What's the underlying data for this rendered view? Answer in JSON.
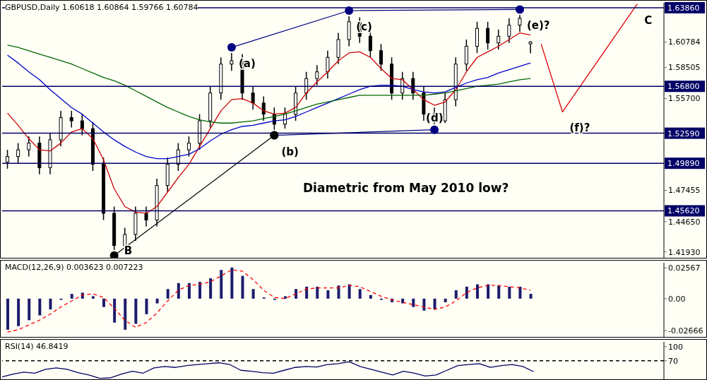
{
  "chart_data": [
    {
      "type": "candlestick",
      "title": "GBPUSD,Daily  1.60618 1.60864 1.59766 1.60784",
      "annotations": [
        "Diametric from May 2010 low?"
      ],
      "color": "#000000",
      "tick_labels": "y",
      "categories": [
        null,
        null,
        null,
        null,
        null,
        null,
        null,
        null,
        null,
        null,
        null,
        null,
        null,
        null,
        null,
        null,
        null,
        null,
        null,
        null,
        null,
        null,
        null,
        null,
        null,
        null,
        null,
        null,
        null,
        null,
        null,
        null,
        null,
        null,
        null,
        null,
        null,
        null,
        null,
        null,
        null,
        null,
        null,
        null,
        null,
        null,
        null,
        null,
        null,
        null,
        null,
        null,
        null,
        null,
        null,
        null,
        null,
        null,
        null,
        null,
        null,
        null
      ],
      "ohlc": [
        [
          1.5,
          1.511,
          1.494,
          1.505
        ],
        [
          1.505,
          1.517,
          1.499,
          1.511
        ],
        [
          1.511,
          1.523,
          1.505,
          1.517
        ],
        [
          1.517,
          1.523,
          1.489,
          1.495
        ],
        [
          1.495,
          1.526,
          1.489,
          1.52
        ],
        [
          1.52,
          1.546,
          1.514,
          1.54
        ],
        [
          1.54,
          1.546,
          1.531,
          1.537
        ],
        [
          1.537,
          1.543,
          1.524,
          1.53
        ],
        [
          1.53,
          1.536,
          1.492,
          1.498
        ],
        [
          1.498,
          1.504,
          1.448,
          1.454
        ],
        [
          1.454,
          1.46,
          1.421,
          1.425
        ],
        [
          1.425,
          1.441,
          1.422,
          1.435
        ],
        [
          1.435,
          1.46,
          1.429,
          1.454
        ],
        [
          1.454,
          1.46,
          1.442,
          1.448
        ],
        [
          1.448,
          1.485,
          1.442,
          1.479
        ],
        [
          1.479,
          1.504,
          1.473,
          1.498
        ],
        [
          1.498,
          1.517,
          1.492,
          1.511
        ],
        [
          1.511,
          1.523,
          1.505,
          1.517
        ],
        [
          1.517,
          1.543,
          1.511,
          1.537
        ],
        [
          1.537,
          1.568,
          1.531,
          1.562
        ],
        [
          1.562,
          1.594,
          1.556,
          1.588
        ],
        [
          1.588,
          1.598,
          1.582,
          1.591
        ],
        [
          1.591,
          1.597,
          1.556,
          1.562
        ],
        [
          1.562,
          1.568,
          1.547,
          1.553
        ],
        [
          1.553,
          1.559,
          1.537,
          1.543
        ],
        [
          1.543,
          1.549,
          1.529,
          1.534
        ],
        [
          1.534,
          1.549,
          1.53,
          1.543
        ],
        [
          1.543,
          1.568,
          1.537,
          1.562
        ],
        [
          1.562,
          1.581,
          1.556,
          1.575
        ],
        [
          1.575,
          1.587,
          1.569,
          1.581
        ],
        [
          1.581,
          1.6,
          1.575,
          1.594
        ],
        [
          1.594,
          1.616,
          1.588,
          1.61
        ],
        [
          1.61,
          1.631,
          1.604,
          1.626
        ],
        [
          1.626,
          1.63,
          1.607,
          1.613
        ],
        [
          1.613,
          1.619,
          1.594,
          1.6
        ],
        [
          1.6,
          1.606,
          1.582,
          1.588
        ],
        [
          1.588,
          1.594,
          1.556,
          1.562
        ],
        [
          1.562,
          1.581,
          1.556,
          1.575
        ],
        [
          1.575,
          1.581,
          1.556,
          1.562
        ],
        [
          1.562,
          1.568,
          1.537,
          1.543
        ],
        [
          1.543,
          1.549,
          1.534,
          1.537
        ],
        [
          1.537,
          1.562,
          1.535,
          1.556
        ],
        [
          1.556,
          1.594,
          1.55,
          1.588
        ],
        [
          1.588,
          1.61,
          1.582,
          1.604
        ],
        [
          1.604,
          1.626,
          1.598,
          1.62
        ],
        [
          1.62,
          1.626,
          1.601,
          1.607
        ],
        [
          1.607,
          1.619,
          1.601,
          1.613
        ],
        [
          1.613,
          1.629,
          1.607,
          1.623
        ],
        [
          1.623,
          1.632,
          1.617,
          1.629
        ],
        [
          1.60618,
          1.60864,
          1.59766,
          1.60784
        ],
        null,
        null,
        null,
        null,
        null,
        null,
        null,
        null,
        null,
        null,
        null,
        null
      ],
      "series": [
        {
          "type": "line",
          "color": "#cc0000",
          "marker": "none",
          "values": [
            1.544,
            1.533,
            1.521,
            1.511,
            1.51,
            1.517,
            1.527,
            1.53,
            1.521,
            1.502,
            1.476,
            1.46,
            1.455,
            1.454,
            1.46,
            1.473,
            1.486,
            1.498,
            1.514,
            1.53,
            1.546,
            1.556,
            1.557,
            1.553,
            1.546,
            1.543,
            1.544,
            1.549,
            1.562,
            1.572,
            1.581,
            1.591,
            1.598,
            1.599,
            1.594,
            1.584,
            1.575,
            1.574,
            1.565,
            1.556,
            1.551,
            1.554,
            1.565,
            1.581,
            1.594,
            1.599,
            1.604,
            1.61,
            1.616,
            1.614,
            null,
            null,
            null,
            null,
            null,
            null,
            null,
            null,
            null,
            null,
            null,
            null
          ]
        },
        {
          "type": "line",
          "color": "#0000cc",
          "marker": "none",
          "values": [
            1.596,
            1.589,
            1.581,
            1.574,
            1.565,
            1.557,
            1.549,
            1.543,
            1.535,
            1.527,
            1.52,
            1.514,
            1.509,
            1.505,
            1.503,
            1.503,
            1.505,
            1.507,
            1.512,
            1.519,
            1.525,
            1.529,
            1.532,
            1.533,
            1.535,
            1.537,
            1.538,
            1.541,
            1.545,
            1.549,
            1.553,
            1.557,
            1.561,
            1.565,
            1.568,
            1.569,
            1.569,
            1.568,
            1.565,
            1.563,
            1.562,
            1.563,
            1.567,
            1.571,
            1.574,
            1.576,
            1.58,
            1.583,
            1.586,
            1.589,
            null,
            null,
            null,
            null,
            null,
            null,
            null,
            null,
            null,
            null,
            null,
            null
          ]
        },
        {
          "type": "line",
          "color": "#006600",
          "marker": "none",
          "values": [
            1.605,
            1.603,
            1.6,
            1.597,
            1.594,
            1.591,
            1.588,
            1.584,
            1.58,
            1.576,
            1.573,
            1.569,
            1.564,
            1.559,
            1.554,
            1.549,
            1.545,
            1.541,
            1.538,
            1.536,
            1.535,
            1.535,
            1.536,
            1.537,
            1.539,
            1.541,
            1.543,
            1.546,
            1.549,
            1.552,
            1.554,
            1.556,
            1.558,
            1.56,
            1.56,
            1.56,
            1.56,
            1.56,
            1.56,
            1.56,
            1.561,
            1.562,
            1.564,
            1.566,
            1.568,
            1.569,
            1.57,
            1.572,
            1.574,
            1.575,
            null,
            null,
            null,
            null,
            null,
            null,
            null,
            null,
            null,
            null,
            null,
            null
          ]
        },
        {
          "type": "line",
          "color": "#000080",
          "marker": "circle",
          "values": [
            null,
            null,
            null,
            null,
            null,
            null,
            null,
            null,
            null,
            null,
            null,
            null,
            null,
            null,
            null,
            null,
            null,
            null,
            null,
            null,
            null,
            1.603,
            null,
            null,
            null,
            null,
            null,
            null,
            null,
            null,
            null,
            null,
            1.636,
            null,
            null,
            null,
            null,
            null,
            null,
            null,
            null,
            null,
            null,
            null,
            null,
            null,
            null,
            null,
            1.637,
            null,
            null,
            null,
            null,
            null,
            null,
            null,
            null,
            null,
            null,
            null,
            null,
            null
          ],
          "value_labels": [
            null,
            null,
            null,
            null,
            null,
            null,
            null,
            null,
            null,
            null,
            null,
            null,
            null,
            null,
            null,
            null,
            null,
            null,
            null,
            null,
            null,
            "(a)",
            null,
            null,
            null,
            null,
            null,
            null,
            null,
            null,
            null,
            null,
            "(c)",
            null,
            null,
            null,
            null,
            null,
            null,
            null,
            null,
            null,
            null,
            null,
            null,
            null,
            null,
            null,
            "(e)?",
            null,
            null,
            null,
            null,
            null,
            null,
            null,
            null,
            null,
            null,
            null,
            null,
            null
          ]
        },
        {
          "type": "line",
          "color": "#000080",
          "marker": "circle",
          "values": [
            null,
            null,
            null,
            null,
            null,
            null,
            null,
            null,
            null,
            null,
            null,
            null,
            null,
            null,
            null,
            null,
            null,
            null,
            null,
            null,
            null,
            null,
            null,
            null,
            null,
            1.524,
            null,
            null,
            null,
            null,
            null,
            null,
            null,
            null,
            null,
            null,
            null,
            null,
            null,
            null,
            1.529,
            null,
            null,
            null,
            null,
            null,
            null,
            null,
            null,
            null,
            null,
            null,
            null,
            null,
            null,
            null,
            null,
            null,
            null,
            null,
            null,
            null
          ],
          "value_labels": [
            null,
            null,
            null,
            null,
            null,
            null,
            null,
            null,
            null,
            null,
            null,
            null,
            null,
            null,
            null,
            null,
            null,
            null,
            null,
            null,
            null,
            null,
            null,
            null,
            null,
            "(b)",
            null,
            null,
            null,
            null,
            null,
            null,
            null,
            null,
            null,
            null,
            null,
            null,
            null,
            null,
            "(d)",
            null,
            null,
            null,
            null,
            null,
            null,
            null,
            null,
            null,
            null,
            null,
            null,
            null,
            null,
            null,
            null,
            null,
            null,
            null,
            null,
            null
          ]
        },
        {
          "type": "line",
          "color": "#000000",
          "marker": "circle",
          "values": [
            null,
            null,
            null,
            null,
            null,
            null,
            null,
            null,
            null,
            null,
            1.416,
            null,
            null,
            null,
            null,
            null,
            null,
            null,
            null,
            null,
            null,
            null,
            null,
            null,
            null,
            1.524,
            null,
            null,
            null,
            null,
            null,
            null,
            null,
            null,
            null,
            null,
            null,
            null,
            null,
            null,
            null,
            null,
            null,
            null,
            null,
            null,
            null,
            null,
            null,
            null,
            null,
            null,
            null,
            null,
            null,
            null,
            null,
            null,
            null,
            null,
            null,
            null
          ],
          "value_labels": [
            null,
            null,
            null,
            null,
            null,
            null,
            null,
            null,
            null,
            null,
            "B",
            null,
            null,
            null,
            null,
            null,
            null,
            null,
            null,
            null,
            null,
            null,
            null,
            null,
            null,
            null,
            null,
            null,
            null,
            null,
            null,
            null,
            null,
            null,
            null,
            null,
            null,
            null,
            null,
            null,
            null,
            null,
            null,
            null,
            null,
            null,
            null,
            null,
            null,
            null,
            null,
            null,
            null,
            null,
            null,
            null,
            null,
            null,
            null,
            null,
            null,
            null
          ]
        },
        {
          "type": "line",
          "color": "#e00000",
          "marker": "none",
          "values": [
            null,
            null,
            null,
            null,
            null,
            null,
            null,
            null,
            null,
            null,
            null,
            null,
            null,
            null,
            null,
            null,
            null,
            null,
            null,
            null,
            null,
            null,
            null,
            null,
            null,
            null,
            null,
            null,
            null,
            null,
            null,
            null,
            null,
            null,
            null,
            null,
            null,
            null,
            null,
            null,
            null,
            null,
            null,
            null,
            null,
            null,
            null,
            null,
            null,
            null,
            1.606,
            null,
            1.545,
            null,
            null,
            null,
            null,
            null,
            null,
            1.642,
            null,
            null
          ],
          "value_labels": [
            null,
            null,
            null,
            null,
            null,
            null,
            null,
            null,
            null,
            null,
            null,
            null,
            null,
            null,
            null,
            null,
            null,
            null,
            null,
            null,
            null,
            null,
            null,
            null,
            null,
            null,
            null,
            null,
            null,
            null,
            null,
            null,
            null,
            null,
            null,
            null,
            null,
            null,
            null,
            null,
            null,
            null,
            null,
            null,
            null,
            null,
            null,
            null,
            null,
            null,
            null,
            null,
            "(f)?",
            null,
            null,
            null,
            null,
            null,
            null,
            "C",
            null,
            null
          ]
        }
      ],
      "ylim": [
        1.414,
        1.643
      ],
      "yticks": [
        {
          "value": 1.60784,
          "label": "1.60784"
        },
        1.58505,
        {
          "value": 1.557,
          "label": "1.55700"
        },
        1.47455,
        {
          "value": 1.4465,
          "label": "1.44650"
        },
        {
          "value": 1.4193,
          "label": "1.41930"
        }
      ],
      "ref_lines": [
        {
          "axis": "y",
          "value": 1.6386,
          "label": "1.63860",
          "color": "#000066"
        },
        {
          "axis": "y",
          "value": 1.568,
          "label": "1.56800",
          "color": "#000066"
        },
        {
          "axis": "y",
          "value": 1.5259,
          "label": "1.52590",
          "color": "#000066"
        },
        {
          "axis": "y",
          "value": 1.4989,
          "label": "1.49890",
          "color": "#000066"
        },
        {
          "axis": "y",
          "value": 1.4562,
          "label": "1.45620",
          "color": "#000066"
        }
      ]
    },
    {
      "type": "bar",
      "title": "MACD(12,26,9) 0.003623 0.007223",
      "tick_labels": "y",
      "categories": [
        null,
        null,
        null,
        null,
        null,
        null,
        null,
        null,
        null,
        null,
        null,
        null,
        null,
        null,
        null,
        null,
        null,
        null,
        null,
        null,
        null,
        null,
        null,
        null,
        null,
        null,
        null,
        null,
        null,
        null,
        null,
        null,
        null,
        null,
        null,
        null,
        null,
        null,
        null,
        null,
        null,
        null,
        null,
        null,
        null,
        null,
        null,
        null,
        null,
        null,
        null,
        null,
        null,
        null,
        null,
        null,
        null,
        null,
        null,
        null,
        null,
        null
      ],
      "series": [
        {
          "type": "bar",
          "color": "#1c1c6c",
          "values": [
            -0.026,
            -0.023,
            -0.018,
            -0.014,
            -0.009,
            -0.001,
            0.004,
            0.005,
            0.002,
            -0.007,
            -0.02,
            -0.026,
            -0.021,
            -0.013,
            -0.004,
            0.008,
            0.013,
            0.013,
            0.014,
            0.017,
            0.024,
            0.026,
            0.019,
            0.008,
            0.001,
            -0.001,
            0.002,
            0.008,
            0.01,
            0.01,
            0.007,
            0.011,
            0.012,
            0.008,
            0.003,
            -0.001,
            -0.003,
            -0.004,
            -0.007,
            -0.01,
            -0.009,
            -0.003,
            0.007,
            0.01,
            0.012,
            0.012,
            0.011,
            0.01,
            0.01,
            0.004,
            null,
            null,
            null,
            null,
            null,
            null,
            null,
            null,
            null,
            null,
            null,
            null
          ]
        },
        {
          "type": "line",
          "color": "#ff0000",
          "line_style": "dashed",
          "marker": "none",
          "values": [
            -0.028,
            -0.026,
            -0.022,
            -0.018,
            -0.013,
            -0.007,
            -0.002,
            0.003,
            0.004,
            0.001,
            -0.008,
            -0.018,
            -0.024,
            -0.02,
            -0.012,
            -0.002,
            0.007,
            0.011,
            0.012,
            0.014,
            0.019,
            0.024,
            0.023,
            0.016,
            0.007,
            0.001,
            0.0,
            0.004,
            0.008,
            0.009,
            0.009,
            0.009,
            0.011,
            0.01,
            0.006,
            0.002,
            -0.001,
            -0.003,
            -0.005,
            -0.007,
            -0.009,
            -0.007,
            -0.002,
            0.005,
            0.009,
            0.011,
            0.011,
            0.01,
            0.009,
            0.007,
            null,
            null,
            null,
            null,
            null,
            null,
            null,
            null,
            null,
            null,
            null,
            null
          ]
        }
      ],
      "ylim": [
        -0.032,
        0.03
      ],
      "yticks": [
        0.02567,
        {
          "value": 0,
          "label": "0.00"
        },
        -0.02666
      ]
    },
    {
      "type": "line",
      "title": "RSI(14) 46.8419",
      "tick_labels": "y",
      "color": "#000066",
      "categories": [
        null,
        null,
        null,
        null,
        null,
        null,
        null,
        null,
        null,
        null,
        null,
        null,
        null,
        null,
        null,
        null,
        null,
        null,
        null,
        null,
        null,
        null,
        null,
        null,
        null,
        null,
        null,
        null,
        null,
        null,
        null,
        null,
        null,
        null,
        null,
        null,
        null,
        null,
        null,
        null,
        null,
        null,
        null,
        null,
        null,
        null,
        null,
        null,
        null,
        null,
        null,
        null,
        null,
        null,
        null,
        null,
        null,
        null,
        null,
        null,
        null,
        null
      ],
      "values": [
        36,
        42,
        46,
        44,
        52,
        55,
        52,
        45,
        40,
        33,
        34,
        42,
        48,
        44,
        55,
        58,
        56,
        60,
        62,
        64,
        66,
        62,
        50,
        48,
        45,
        44,
        50,
        56,
        58,
        57,
        62,
        64,
        68,
        58,
        52,
        46,
        40,
        48,
        44,
        38,
        40,
        50,
        60,
        62,
        64,
        56,
        60,
        62,
        58,
        47,
        null,
        null,
        null,
        null,
        null,
        null,
        null,
        null,
        null,
        null,
        null,
        null
      ],
      "ylim": [
        31,
        110
      ],
      "yticks": [
        100,
        70
      ],
      "ref_lines": [
        {
          "axis": "y",
          "value": 70,
          "label": null,
          "color": "#000000",
          "line_style": "dashed"
        }
      ]
    }
  ]
}
